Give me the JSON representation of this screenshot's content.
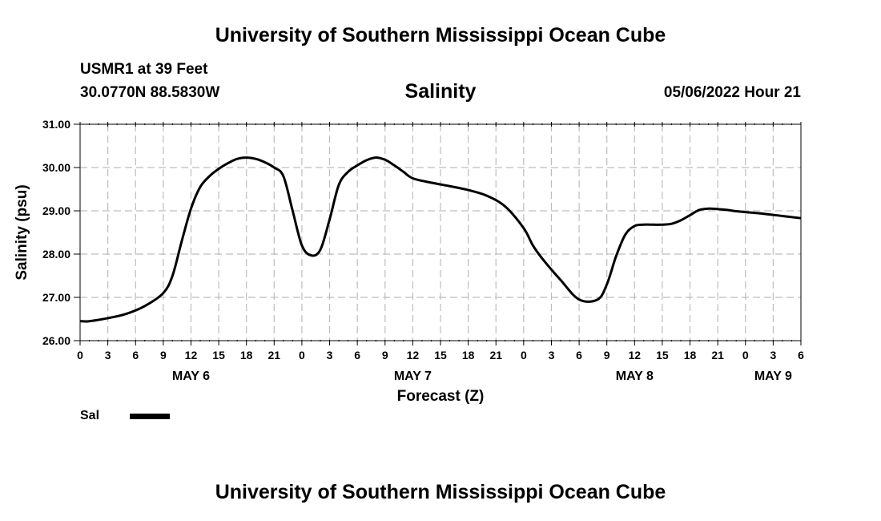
{
  "header": {
    "title": "University of Southern Mississippi Ocean Cube",
    "station": "USMR1 at 39 Feet",
    "coords": "30.0770N  88.5830W",
    "subtitle": "Salinity",
    "datetime": "05/06/2022 Hour 21"
  },
  "legend": {
    "label": "Sal",
    "color": "#000000"
  },
  "footer": {
    "title": "University of Southern Mississippi Ocean Cube"
  },
  "chart_data": {
    "type": "line",
    "xlabel": "Forecast (Z)",
    "ylabel": "Salinity (psu)",
    "xlim": [
      0,
      78
    ],
    "ylim": [
      26.0,
      31.0
    ],
    "ytick_labels": [
      "26.00",
      "27.00",
      "28.00",
      "29.00",
      "30.00",
      "31.00"
    ],
    "xtick_labels": [
      "0",
      "3",
      "6",
      "9",
      "12",
      "15",
      "18",
      "21",
      "0",
      "3",
      "6",
      "9",
      "12",
      "15",
      "18",
      "21",
      "0",
      "3",
      "6",
      "9",
      "12",
      "15",
      "18",
      "21",
      "0",
      "3",
      "6"
    ],
    "day_labels": [
      {
        "label": "MAY 6",
        "hour": 12
      },
      {
        "label": "MAY 7",
        "hour": 36
      },
      {
        "label": "MAY 8",
        "hour": 60
      },
      {
        "label": "MAY 9",
        "hour": 75
      }
    ],
    "grid": true,
    "series": [
      {
        "name": "Sal",
        "color": "#000000",
        "x": [
          0,
          1,
          3,
          5,
          7,
          9,
          10,
          11,
          12,
          13,
          14,
          15,
          16,
          17,
          18,
          19,
          20,
          21,
          22,
          23,
          24,
          25,
          26,
          27,
          28,
          29,
          30,
          31,
          32,
          33,
          34,
          35,
          36,
          38,
          40,
          42,
          44,
          46,
          48,
          49,
          50,
          52,
          54,
          56,
          57,
          58,
          59,
          60,
          61,
          62,
          63,
          64,
          65,
          66,
          67,
          68,
          69,
          70,
          71,
          72,
          74,
          76,
          78
        ],
        "y": [
          26.45,
          26.45,
          26.52,
          26.62,
          26.8,
          27.1,
          27.5,
          28.3,
          29.05,
          29.55,
          29.8,
          29.97,
          30.1,
          30.2,
          30.23,
          30.2,
          30.12,
          30.0,
          29.8,
          29.0,
          28.2,
          27.97,
          28.1,
          28.8,
          29.6,
          29.9,
          30.05,
          30.17,
          30.23,
          30.18,
          30.05,
          29.9,
          29.75,
          29.65,
          29.57,
          29.48,
          29.35,
          29.1,
          28.6,
          28.2,
          27.9,
          27.4,
          26.95,
          26.95,
          27.3,
          27.95,
          28.45,
          28.65,
          28.68,
          28.68,
          28.68,
          28.7,
          28.78,
          28.9,
          29.02,
          29.05,
          29.04,
          29.02,
          28.99,
          28.97,
          28.93,
          28.88,
          28.83
        ]
      }
    ]
  }
}
